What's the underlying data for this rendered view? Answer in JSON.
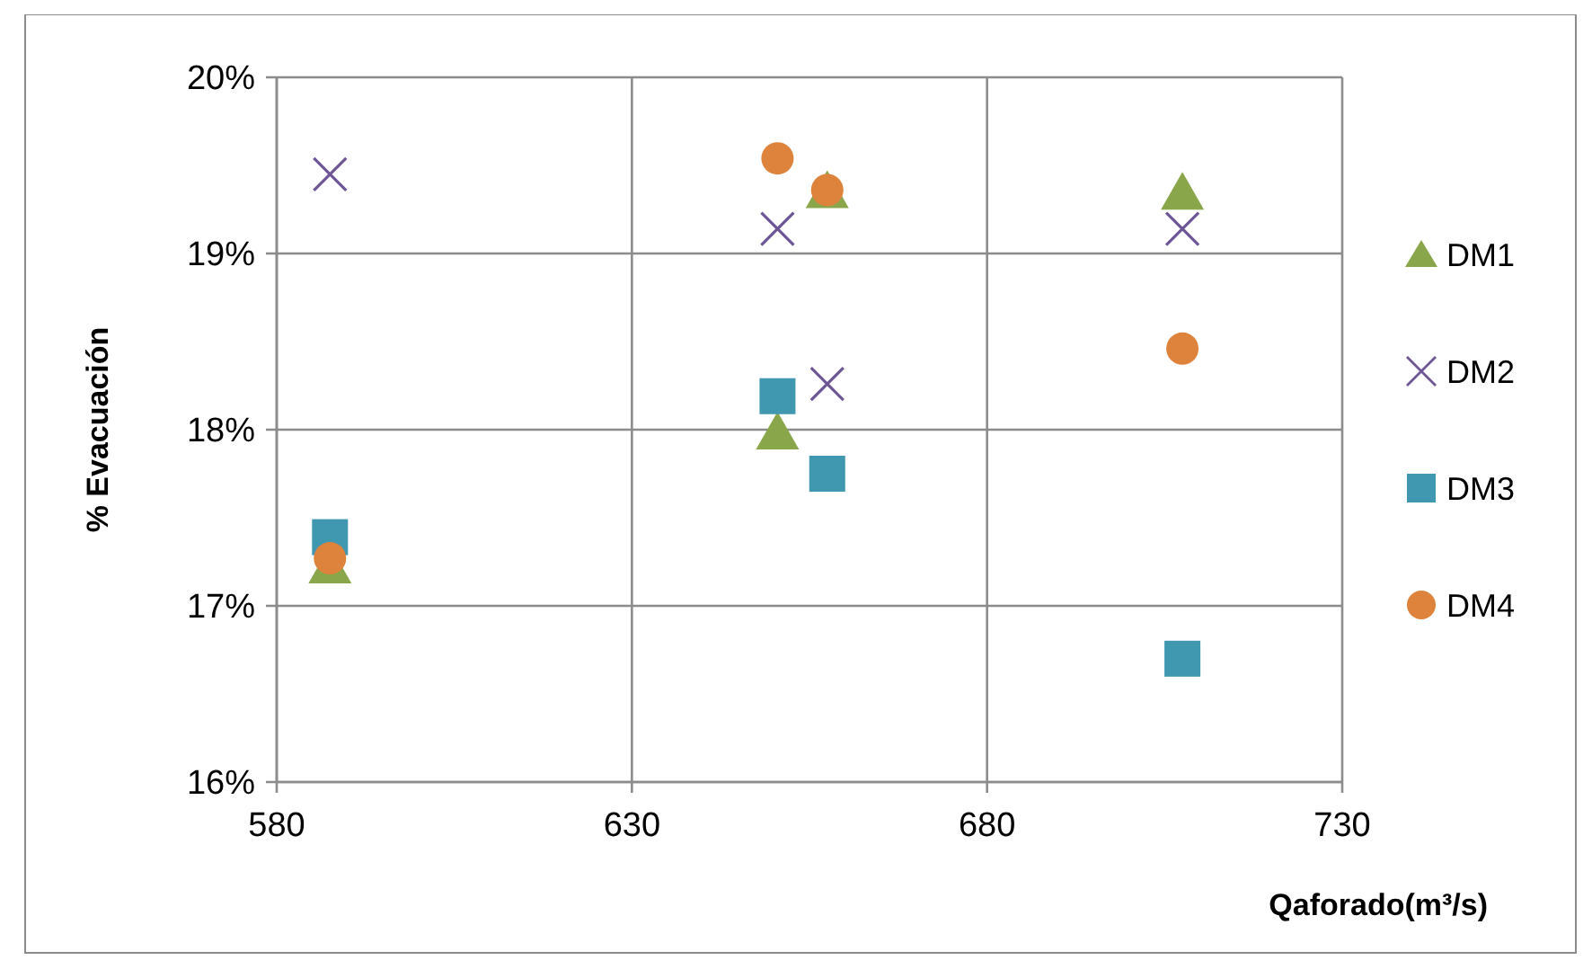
{
  "chart_data": {
    "type": "scatter",
    "xlabel": "Qaforado(m³/s)",
    "ylabel": "% Evacuación",
    "xlim": [
      580,
      730
    ],
    "xticks": [
      580,
      630,
      680,
      730
    ],
    "ylim": [
      16,
      20
    ],
    "yticks": [
      {
        "value": 16,
        "label": "16%"
      },
      {
        "value": 17,
        "label": "17%"
      },
      {
        "value": 18,
        "label": "18%"
      },
      {
        "value": 19,
        "label": "19%"
      },
      {
        "value": 20,
        "label": "20%"
      }
    ],
    "grid": true,
    "legend": "right",
    "series": [
      {
        "name": "DM1",
        "color": "#8aa64b",
        "marker": "triangle",
        "x": [
          587.5,
          650.5,
          657.5,
          707.5
        ],
        "values": [
          17.22,
          17.98,
          19.35,
          19.34
        ]
      },
      {
        "name": "DM2",
        "color": "#6d5596",
        "marker": "cross",
        "x": [
          587.5,
          650.5,
          657.5,
          707.5
        ],
        "values": [
          19.45,
          19.14,
          18.26,
          19.14
        ]
      },
      {
        "name": "DM3",
        "color": "#3f97b0",
        "marker": "square",
        "x": [
          587.5,
          650.5,
          657.5,
          707.5
        ],
        "values": [
          17.39,
          18.19,
          17.75,
          16.7
        ]
      },
      {
        "name": "DM4",
        "color": "#dd833c",
        "marker": "circle",
        "x": [
          587.5,
          650.5,
          657.5,
          707.5
        ],
        "values": [
          17.27,
          19.54,
          19.36,
          18.46
        ]
      }
    ]
  }
}
